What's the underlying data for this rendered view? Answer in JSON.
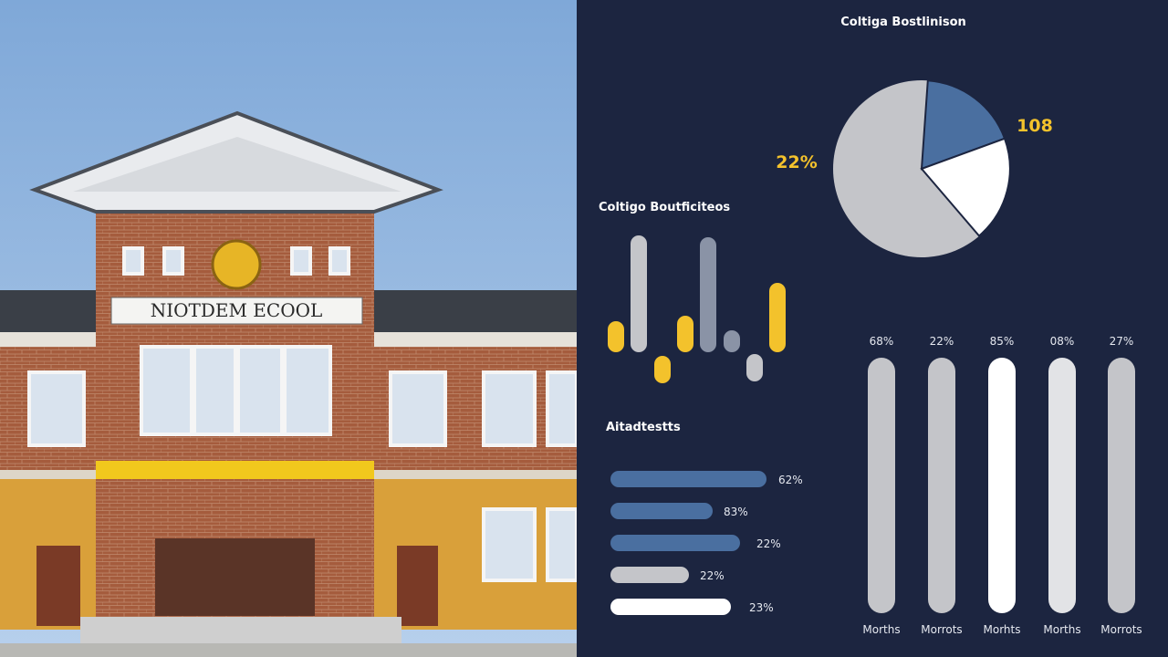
{
  "building": {
    "sign": "NIOTDEM ECOOL"
  },
  "dashboard": {
    "title": "Coltiga Bostlinison",
    "pie_labels": [
      "22%",
      "108"
    ],
    "bar_section_title": "Coltigo Boutficiteos",
    "list_title": "Aitadtestts",
    "list_labels": [
      "62%",
      "83%",
      "22%",
      "22%",
      "23%"
    ],
    "column_top_labels": [
      "68%",
      "22%",
      "85%",
      "08%",
      "27%"
    ],
    "column_bottom_labels": [
      "Morths",
      "Morrots",
      "Morhts",
      "Morths",
      "Morrots"
    ]
  }
}
